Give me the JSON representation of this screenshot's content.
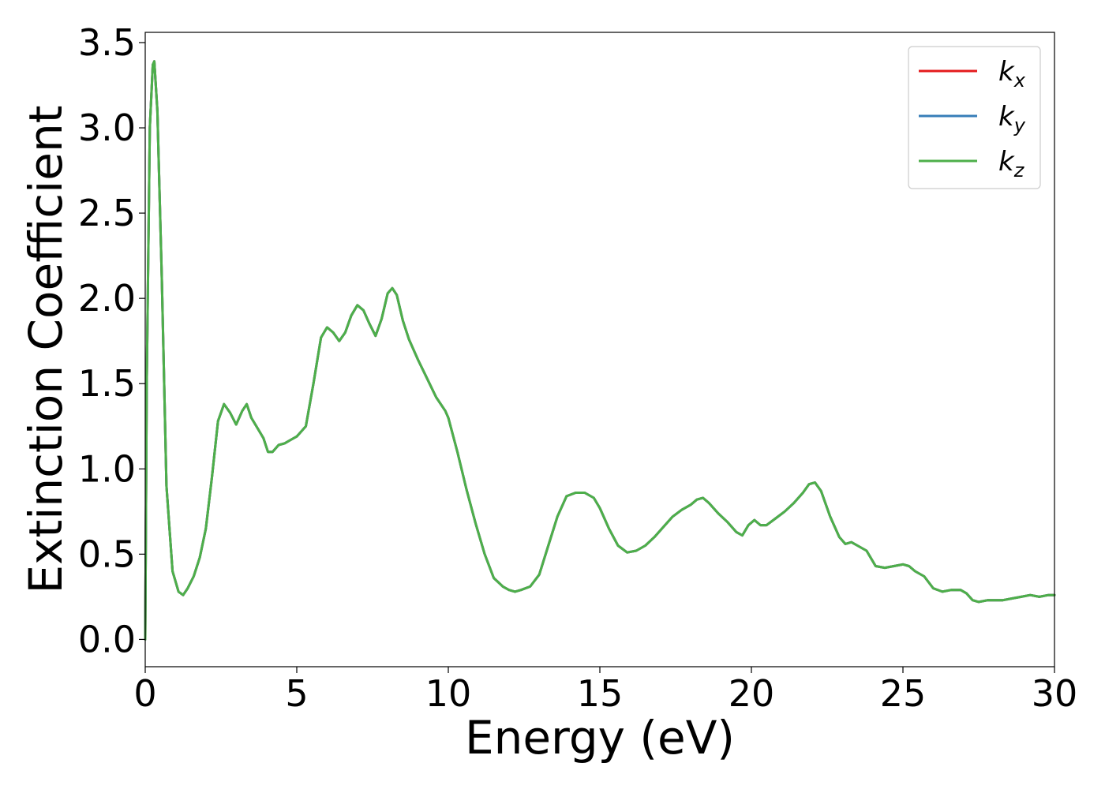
{
  "chart_data": {
    "type": "line",
    "xlabel": "Energy (eV)",
    "ylabel": "Extinction Coefficient",
    "xlim": [
      0,
      30
    ],
    "ylim": [
      -0.16,
      3.56
    ],
    "xticks": [
      0,
      5,
      10,
      15,
      20,
      25,
      30
    ],
    "xtick_labels": [
      "0",
      "5",
      "10",
      "15",
      "20",
      "25",
      "30"
    ],
    "yticks": [
      0.0,
      0.5,
      1.0,
      1.5,
      2.0,
      2.5,
      3.0,
      3.5
    ],
    "ytick_labels": [
      "0.0",
      "0.5",
      "1.0",
      "1.5",
      "2.0",
      "2.5",
      "3.0",
      "3.5"
    ],
    "grid": false,
    "legend_position": "top-right",
    "x": [
      0,
      0.05,
      0.15,
      0.25,
      0.3,
      0.4,
      0.55,
      0.7,
      0.9,
      1.1,
      1.25,
      1.4,
      1.6,
      1.8,
      2.0,
      2.2,
      2.4,
      2.6,
      2.8,
      3.0,
      3.2,
      3.35,
      3.5,
      3.7,
      3.9,
      4.05,
      4.2,
      4.4,
      4.6,
      4.8,
      5.0,
      5.3,
      5.55,
      5.8,
      6.0,
      6.2,
      6.4,
      6.6,
      6.8,
      7.0,
      7.2,
      7.4,
      7.6,
      7.8,
      8.0,
      8.15,
      8.3,
      8.5,
      8.7,
      9.0,
      9.3,
      9.6,
      9.9,
      10.0,
      10.3,
      10.6,
      10.9,
      11.2,
      11.5,
      11.8,
      12.0,
      12.2,
      12.4,
      12.7,
      13.0,
      13.3,
      13.6,
      13.9,
      14.2,
      14.5,
      14.8,
      15.0,
      15.3,
      15.6,
      15.9,
      16.2,
      16.5,
      16.8,
      17.1,
      17.4,
      17.7,
      18.0,
      18.2,
      18.4,
      18.6,
      18.9,
      19.2,
      19.5,
      19.7,
      19.9,
      20.1,
      20.3,
      20.5,
      20.8,
      21.1,
      21.4,
      21.7,
      21.9,
      22.1,
      22.3,
      22.6,
      22.9,
      23.1,
      23.3,
      23.5,
      23.8,
      24.1,
      24.4,
      24.7,
      25.0,
      25.2,
      25.4,
      25.7,
      26.0,
      26.3,
      26.6,
      26.9,
      27.1,
      27.3,
      27.5,
      27.8,
      28.0,
      28.3,
      28.6,
      28.9,
      29.2,
      29.5,
      29.8,
      30.0
    ],
    "series": [
      {
        "name": "k_x",
        "color": "#e41a1c",
        "values": [
          0.0,
          1.5,
          3.0,
          3.37,
          3.39,
          3.1,
          2.1,
          0.9,
          0.4,
          0.28,
          0.26,
          0.3,
          0.37,
          0.48,
          0.65,
          0.95,
          1.28,
          1.38,
          1.33,
          1.26,
          1.34,
          1.38,
          1.3,
          1.24,
          1.18,
          1.1,
          1.1,
          1.14,
          1.15,
          1.17,
          1.19,
          1.25,
          1.5,
          1.77,
          1.83,
          1.8,
          1.75,
          1.8,
          1.9,
          1.96,
          1.93,
          1.85,
          1.78,
          1.88,
          2.03,
          2.06,
          2.02,
          1.87,
          1.76,
          1.64,
          1.53,
          1.42,
          1.34,
          1.3,
          1.1,
          0.88,
          0.68,
          0.5,
          0.36,
          0.31,
          0.29,
          0.28,
          0.29,
          0.31,
          0.38,
          0.55,
          0.72,
          0.84,
          0.86,
          0.86,
          0.83,
          0.77,
          0.65,
          0.55,
          0.51,
          0.52,
          0.55,
          0.6,
          0.66,
          0.72,
          0.76,
          0.79,
          0.82,
          0.83,
          0.8,
          0.74,
          0.69,
          0.63,
          0.61,
          0.67,
          0.7,
          0.67,
          0.67,
          0.71,
          0.75,
          0.8,
          0.86,
          0.91,
          0.92,
          0.87,
          0.72,
          0.6,
          0.56,
          0.57,
          0.55,
          0.52,
          0.43,
          0.42,
          0.43,
          0.44,
          0.43,
          0.4,
          0.37,
          0.3,
          0.28,
          0.29,
          0.29,
          0.27,
          0.23,
          0.22,
          0.23,
          0.23,
          0.23,
          0.24,
          0.25,
          0.26,
          0.25,
          0.26,
          0.26
        ]
      },
      {
        "name": "k_y",
        "color": "#377eb8",
        "values": [
          0.0,
          1.5,
          3.0,
          3.37,
          3.39,
          3.1,
          2.1,
          0.9,
          0.4,
          0.28,
          0.26,
          0.3,
          0.37,
          0.48,
          0.65,
          0.95,
          1.28,
          1.38,
          1.33,
          1.26,
          1.34,
          1.38,
          1.3,
          1.24,
          1.18,
          1.1,
          1.1,
          1.14,
          1.15,
          1.17,
          1.19,
          1.25,
          1.5,
          1.77,
          1.83,
          1.8,
          1.75,
          1.8,
          1.9,
          1.96,
          1.93,
          1.85,
          1.78,
          1.88,
          2.03,
          2.06,
          2.02,
          1.87,
          1.76,
          1.64,
          1.53,
          1.42,
          1.34,
          1.3,
          1.1,
          0.88,
          0.68,
          0.5,
          0.36,
          0.31,
          0.29,
          0.28,
          0.29,
          0.31,
          0.38,
          0.55,
          0.72,
          0.84,
          0.86,
          0.86,
          0.83,
          0.77,
          0.65,
          0.55,
          0.51,
          0.52,
          0.55,
          0.6,
          0.66,
          0.72,
          0.76,
          0.79,
          0.82,
          0.83,
          0.8,
          0.74,
          0.69,
          0.63,
          0.61,
          0.67,
          0.7,
          0.67,
          0.67,
          0.71,
          0.75,
          0.8,
          0.86,
          0.91,
          0.92,
          0.87,
          0.72,
          0.6,
          0.56,
          0.57,
          0.55,
          0.52,
          0.43,
          0.42,
          0.43,
          0.44,
          0.43,
          0.4,
          0.37,
          0.3,
          0.28,
          0.29,
          0.29,
          0.27,
          0.23,
          0.22,
          0.23,
          0.23,
          0.23,
          0.24,
          0.25,
          0.26,
          0.25,
          0.26,
          0.26
        ]
      },
      {
        "name": "k_z",
        "color": "#4daf4a",
        "values": [
          0.0,
          1.5,
          3.0,
          3.37,
          3.39,
          3.1,
          2.1,
          0.9,
          0.4,
          0.28,
          0.26,
          0.3,
          0.37,
          0.48,
          0.65,
          0.95,
          1.28,
          1.38,
          1.33,
          1.26,
          1.34,
          1.38,
          1.3,
          1.24,
          1.18,
          1.1,
          1.1,
          1.14,
          1.15,
          1.17,
          1.19,
          1.25,
          1.5,
          1.77,
          1.83,
          1.8,
          1.75,
          1.8,
          1.9,
          1.96,
          1.93,
          1.85,
          1.78,
          1.88,
          2.03,
          2.06,
          2.02,
          1.87,
          1.76,
          1.64,
          1.53,
          1.42,
          1.34,
          1.3,
          1.1,
          0.88,
          0.68,
          0.5,
          0.36,
          0.31,
          0.29,
          0.28,
          0.29,
          0.31,
          0.38,
          0.55,
          0.72,
          0.84,
          0.86,
          0.86,
          0.83,
          0.77,
          0.65,
          0.55,
          0.51,
          0.52,
          0.55,
          0.6,
          0.66,
          0.72,
          0.76,
          0.79,
          0.82,
          0.83,
          0.8,
          0.74,
          0.69,
          0.63,
          0.61,
          0.67,
          0.7,
          0.67,
          0.67,
          0.71,
          0.75,
          0.8,
          0.86,
          0.91,
          0.92,
          0.87,
          0.72,
          0.6,
          0.56,
          0.57,
          0.55,
          0.52,
          0.43,
          0.42,
          0.43,
          0.44,
          0.43,
          0.4,
          0.37,
          0.3,
          0.28,
          0.29,
          0.29,
          0.27,
          0.23,
          0.22,
          0.23,
          0.23,
          0.23,
          0.24,
          0.25,
          0.26,
          0.25,
          0.26,
          0.26
        ]
      }
    ],
    "legend": [
      {
        "base": "k",
        "sub": "x",
        "color": "#e41a1c"
      },
      {
        "base": "k",
        "sub": "y",
        "color": "#377eb8"
      },
      {
        "base": "k",
        "sub": "z",
        "color": "#4daf4a"
      }
    ]
  }
}
